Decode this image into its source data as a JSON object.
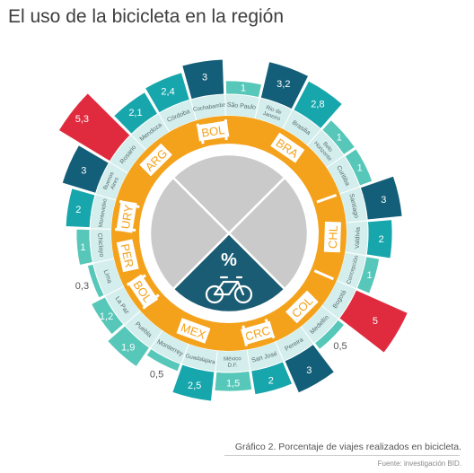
{
  "title": "El uso de la bicicleta en la región",
  "caption": "Gráfico 2. Porcentaje de viajes realizados en bicicleta.",
  "source": "Fuente: investigación BID.",
  "center_symbol": "%",
  "colors": {
    "ring_orange": "#f4a21b",
    "label_ring": "#d3eeec",
    "divider": "#ffffff",
    "center_gray": "#cacaca",
    "center_teal": "#1a5c73",
    "bar_low": "#56c7b8",
    "bar_mid": "#17a6ac",
    "bar_high": "#135e78",
    "bar_top": "#e02b3f"
  },
  "chart_data": {
    "type": "radial-bar",
    "title": "El uso de la bicicleta en la región",
    "unit": "%",
    "countries": [
      "ARG",
      "BOL",
      "BRA",
      "CHL",
      "COL",
      "CRC",
      "MEX",
      "PER",
      "URY"
    ],
    "cities": [
      {
        "city": "Rosario",
        "country": "ARG",
        "value": 5.3,
        "label": "5,3"
      },
      {
        "city": "Mendoza",
        "country": "ARG",
        "value": 2.1,
        "label": "2,1"
      },
      {
        "city": "Córdoba",
        "country": "ARG",
        "value": 2.4,
        "label": "2,4"
      },
      {
        "city": "Cochabamba",
        "country": "BOL",
        "value": 3,
        "label": "3"
      },
      {
        "city": "São Paulo",
        "country": "BRA",
        "value": 1,
        "label": "1"
      },
      {
        "city": "Rio de Janeiro",
        "country": "BRA",
        "value": 3.2,
        "label": "3,2"
      },
      {
        "city": "Brasilia",
        "country": "BRA",
        "value": 2.8,
        "label": "2,8"
      },
      {
        "city": "Belo Horizonte",
        "country": "BRA",
        "value": 1,
        "label": "1"
      },
      {
        "city": "Curitiba",
        "country": "BRA",
        "value": 1,
        "label": "1"
      },
      {
        "city": "Santiago",
        "country": "CHL",
        "value": 3,
        "label": "3"
      },
      {
        "city": "Valdivia",
        "country": "CHL",
        "value": 2,
        "label": "2"
      },
      {
        "city": "Concepción",
        "country": "CHL",
        "value": 1,
        "label": "1"
      },
      {
        "city": "Bogotá",
        "country": "COL",
        "value": 5,
        "label": "5"
      },
      {
        "city": "Medellín",
        "country": "COL",
        "value": 0.5,
        "label": "0,5"
      },
      {
        "city": "Pereira",
        "country": "COL",
        "value": 3,
        "label": "3"
      },
      {
        "city": "San José",
        "country": "CRC",
        "value": 2,
        "label": "2"
      },
      {
        "city": "México D.F.",
        "country": "MEX",
        "value": 1.5,
        "label": "1,5"
      },
      {
        "city": "Guadalajara",
        "country": "MEX",
        "value": 2.5,
        "label": "2,5"
      },
      {
        "city": "Monterrey",
        "country": "MEX",
        "value": 0.5,
        "label": "0,5"
      },
      {
        "city": "Puebla",
        "country": "MEX",
        "value": 1.9,
        "label": "1,9"
      },
      {
        "city": "La Paz",
        "country": "BOL",
        "value": 1.2,
        "label": "1,2"
      },
      {
        "city": "Lima",
        "country": "PER",
        "value": 0.3,
        "label": "0,3"
      },
      {
        "city": "Chiclayo",
        "country": "PER",
        "value": 1,
        "label": "1"
      },
      {
        "city": "Montevideo",
        "country": "URY",
        "value": 2,
        "label": "2"
      },
      {
        "city": "Buenos Aires",
        "country": "ARG",
        "value": 3,
        "label": "3"
      }
    ]
  }
}
